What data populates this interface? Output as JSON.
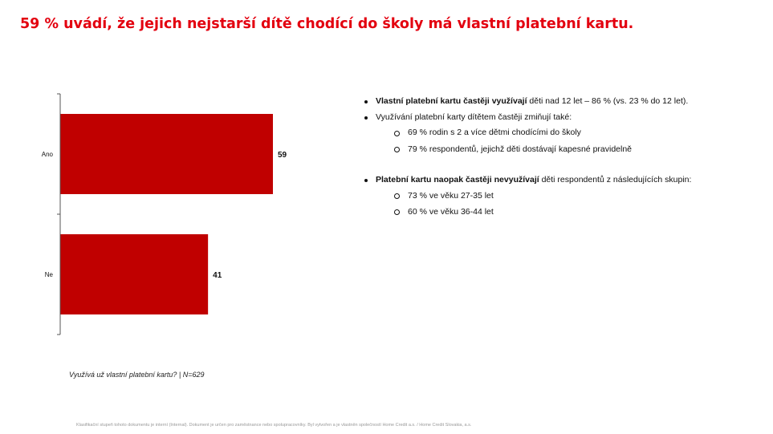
{
  "page": {
    "title": "59 % uvádí, že jejich nejstarší dítě chodící do školy má vlastní platební kartu.",
    "accent_color": "#e3000f",
    "bar_color": "#c00000"
  },
  "chart_data": {
    "type": "bar",
    "orientation": "horizontal",
    "categories": [
      "Ano",
      "Ne"
    ],
    "values": [
      59,
      41
    ],
    "xlim": [
      0,
      100
    ],
    "data_labels": [
      "59",
      "41"
    ]
  },
  "bullets": {
    "b1_bold": "Vlastní platební kartu častěji využívají",
    "b1_rest": " děti nad 12 let – 86 % (vs. 23 % do 12 let).",
    "b2": "Využívání platební karty dítětem častěji zmiňují také:",
    "b2_sub1": "69 % rodin s 2 a více dětmi chodícími do školy",
    "b2_sub2": "79 % respondentů, jejichž děti dostávají kapesné pravidelně",
    "b3_bold": "Platební kartu naopak častěji nevyužívají",
    "b3_rest": " děti respondentů z následujících skupin:",
    "b3_sub1": "73 % ve věku 27-35 let",
    "b3_sub2": "60 % ve věku 36-44 let"
  },
  "note": "Využívá už vlastní platební kartu?   |  N=629",
  "footer": "Klasifikační stupeň tohoto dokumentu je interní (Internal). Dokument je určen pro zaměstnance nebo spolupracovníky. Byl vytvořen a je vlastněn společností Home Credit a.s. / Home Credit Slovakia, a.s."
}
